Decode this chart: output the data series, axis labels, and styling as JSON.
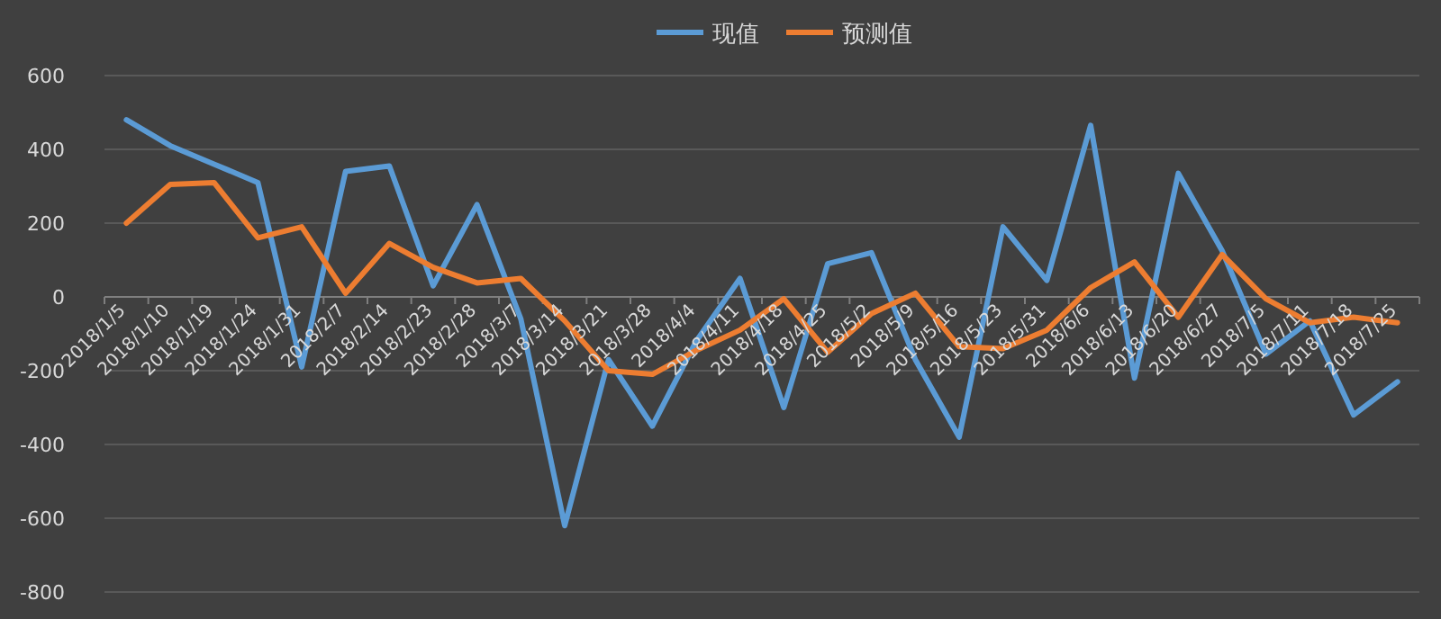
{
  "chart_data": {
    "type": "line",
    "categories": [
      "2018/1/5",
      "2018/1/10",
      "2018/1/19",
      "2018/1/24",
      "2018/1/31",
      "2018/2/7",
      "2018/2/14",
      "2018/2/23",
      "2018/2/28",
      "2018/3/7",
      "2018/3/14",
      "2018/3/21",
      "2018/3/28",
      "2018/4/4",
      "2018/4/11",
      "2018/4/18",
      "2018/4/25",
      "2018/5/2",
      "2018/5/9",
      "2018/5/16",
      "2018/5/23",
      "2018/5/31",
      "2018/6/6",
      "2018/6/13",
      "2018/6/20",
      "2018/6/27",
      "2018/7/5",
      "2018/7/11",
      "2018/7/18",
      "2018/7/25"
    ],
    "series": [
      {
        "name": "现值",
        "color": "#5b9bd5",
        "values": [
          480,
          410,
          360,
          310,
          -190,
          340,
          355,
          30,
          250,
          -60,
          -620,
          -170,
          -350,
          -120,
          50,
          -300,
          90,
          120,
          -170,
          -380,
          190,
          45,
          465,
          -220,
          335,
          125,
          -155,
          -65,
          -320,
          -230
        ]
      },
      {
        "name": "预测值",
        "color": "#ed7d31",
        "values": [
          200,
          305,
          310,
          160,
          190,
          10,
          145,
          80,
          38,
          50,
          -65,
          -200,
          -210,
          -145,
          -90,
          -5,
          -150,
          -45,
          10,
          -135,
          -140,
          -90,
          25,
          95,
          -55,
          115,
          -5,
          -70,
          -55,
          -70
        ]
      }
    ],
    "ylim": [
      -800,
      600
    ],
    "yticks": [
      -800,
      -600,
      -400,
      -200,
      0,
      200,
      400,
      600
    ],
    "grid": "y",
    "legend": "top",
    "marker": "none",
    "line_style": "solid"
  }
}
